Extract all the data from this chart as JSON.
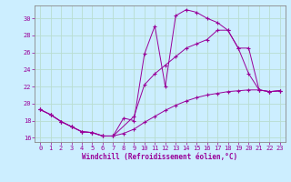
{
  "xlabel": "Windchill (Refroidissement éolien,°C)",
  "bg_color": "#cceeff",
  "grid_color": "#aaddcc",
  "line_color": "#990099",
  "xlim": [
    -0.5,
    23.5
  ],
  "ylim": [
    15.5,
    31.5
  ],
  "xticks": [
    0,
    1,
    2,
    3,
    4,
    5,
    6,
    7,
    8,
    9,
    10,
    11,
    12,
    13,
    14,
    15,
    16,
    17,
    18,
    19,
    20,
    21,
    22,
    23
  ],
  "yticks": [
    16,
    18,
    20,
    22,
    24,
    26,
    28,
    30
  ],
  "line1_x": [
    0,
    1,
    2,
    3,
    4,
    5,
    6,
    7,
    8,
    9,
    10,
    11,
    12,
    13,
    14,
    15,
    16,
    17,
    18,
    19,
    20,
    21,
    22,
    23
  ],
  "line1_y": [
    19.3,
    18.7,
    17.9,
    17.3,
    16.7,
    16.6,
    16.2,
    16.2,
    18.3,
    18.0,
    25.8,
    29.1,
    22.0,
    30.3,
    31.0,
    30.7,
    30.0,
    29.5,
    28.6,
    26.5,
    23.5,
    21.6,
    21.4,
    21.5
  ],
  "line2_x": [
    0,
    1,
    2,
    3,
    4,
    5,
    6,
    7,
    8,
    9,
    10,
    11,
    12,
    13,
    14,
    15,
    16,
    17,
    18,
    19,
    20,
    21,
    22,
    23
  ],
  "line2_y": [
    19.3,
    18.7,
    17.9,
    17.3,
    16.7,
    16.6,
    16.2,
    16.2,
    16.5,
    17.0,
    17.8,
    18.5,
    19.2,
    19.8,
    20.3,
    20.7,
    21.0,
    21.2,
    21.4,
    21.5,
    21.6,
    21.6,
    21.4,
    21.5
  ],
  "line3_x": [
    0,
    1,
    2,
    3,
    4,
    5,
    6,
    7,
    9,
    10,
    11,
    12,
    13,
    14,
    15,
    16,
    17,
    18,
    19,
    20,
    21,
    22,
    23
  ],
  "line3_y": [
    19.3,
    18.7,
    17.9,
    17.3,
    16.7,
    16.6,
    16.2,
    16.2,
    18.5,
    22.2,
    23.5,
    24.5,
    25.5,
    26.5,
    27.0,
    27.5,
    28.6,
    28.6,
    26.5,
    26.5,
    21.6,
    21.4,
    21.5
  ]
}
